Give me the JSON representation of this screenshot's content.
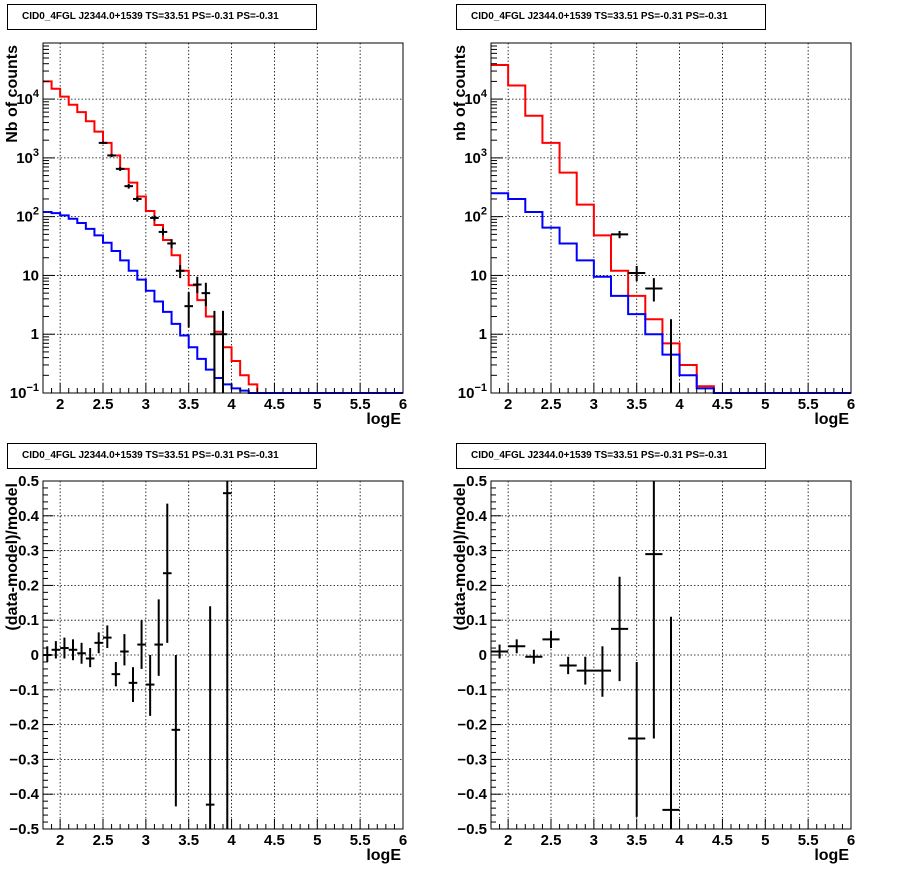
{
  "colors": {
    "data": "#000000",
    "total_model": "#ff0000",
    "source_model": "#0000ff",
    "grid": "#000000"
  },
  "panels": [
    {
      "title": "CID0_4FGL J2344.0+1539 TS=33.51 PS=-0.31 PS=-0.31",
      "chart_data": {
        "type": "histogram",
        "xlabel": "logE",
        "ylabel": "Nb of counts",
        "xlim": [
          1.8,
          6.0
        ],
        "ylim": [
          0.1,
          90000
        ],
        "yscale": "log",
        "xticks": [
          2,
          2.5,
          3,
          3.5,
          4,
          4.5,
          5,
          5.5,
          6
        ],
        "yticks": [
          {
            "v": 0.1,
            "label": "10",
            "sup": "−1"
          },
          {
            "v": 1,
            "label": "1"
          },
          {
            "v": 10,
            "label": "10"
          },
          {
            "v": 100,
            "label": "10",
            "sup": "2"
          },
          {
            "v": 1000,
            "label": "10",
            "sup": "3"
          },
          {
            "v": 10000,
            "label": "10",
            "sup": "4"
          }
        ],
        "grid": true,
        "bin_edges": [
          1.8,
          1.9,
          2.0,
          2.1,
          2.2,
          2.3,
          2.4,
          2.5,
          2.6,
          2.7,
          2.8,
          2.9,
          3.0,
          3.1,
          3.2,
          3.3,
          3.4,
          3.5,
          3.6,
          3.7,
          3.8,
          3.9,
          4.0,
          4.1,
          4.2,
          4.3,
          4.4,
          4.5,
          6.0
        ],
        "series": [
          {
            "color_key": "total_model",
            "values": [
              20000,
              15000,
              11000,
              8000,
              6000,
              4200,
              2800,
              1800,
              1100,
              650,
              380,
              220,
              125,
              72,
              40,
              22,
              12,
              6.8,
              3.8,
              2.0,
              1.1,
              0.6,
              0.35,
              0.2,
              0.14,
              0.1,
              0.1,
              0.1
            ]
          },
          {
            "color_key": "source_model",
            "values": [
              120,
              115,
              105,
              92,
              78,
              62,
              48,
              36,
              26,
              18,
              12,
              8.5,
              5.5,
              3.6,
              2.4,
              1.5,
              0.95,
              0.6,
              0.38,
              0.25,
              0.18,
              0.14,
              0.12,
              0.11,
              0.1,
              0.1,
              0.1,
              0.1
            ]
          }
        ],
        "points": [
          {
            "x": 2.5,
            "y": 1800,
            "dx": 0.05,
            "lo": 1720,
            "hi": 1890
          },
          {
            "x": 2.6,
            "y": 1100,
            "dx": 0.05,
            "lo": 1030,
            "hi": 1170
          },
          {
            "x": 2.7,
            "y": 650,
            "dx": 0.05,
            "lo": 600,
            "hi": 700
          },
          {
            "x": 2.8,
            "y": 330,
            "dx": 0.05,
            "lo": 300,
            "hi": 360
          },
          {
            "x": 2.9,
            "y": 200,
            "dx": 0.05,
            "lo": 180,
            "hi": 220
          },
          {
            "x": 3.1,
            "y": 95,
            "dx": 0.05,
            "lo": 85,
            "hi": 105
          },
          {
            "x": 3.2,
            "y": 55,
            "dx": 0.05,
            "lo": 48,
            "hi": 63
          },
          {
            "x": 3.3,
            "y": 35,
            "dx": 0.05,
            "lo": 29,
            "hi": 41
          },
          {
            "x": 3.4,
            "y": 12,
            "dx": 0.05,
            "lo": 9,
            "hi": 15
          },
          {
            "x": 3.5,
            "y": 3.0,
            "dx": 0.05,
            "lo": 1.3,
            "hi": 5.2
          },
          {
            "x": 3.6,
            "y": 7,
            "dx": 0.05,
            "lo": 5,
            "hi": 9.5
          },
          {
            "x": 3.7,
            "y": 5,
            "dx": 0.05,
            "lo": 3,
            "hi": 7.5
          },
          {
            "x": 3.8,
            "y": 1.0,
            "dx": 0.05,
            "lo": 0.1,
            "hi": 2.5
          },
          {
            "x": 3.9,
            "y": 1.0,
            "dx": 0.05,
            "lo": 0.1,
            "hi": 2.5
          }
        ]
      }
    },
    {
      "title": "CID0_4FGL J2344.0+1539 TS=33.51 PS=-0.31 PS=-0.31",
      "chart_data": {
        "type": "histogram",
        "xlabel": "logE",
        "ylabel": "nb of counts",
        "xlim": [
          1.8,
          6.0
        ],
        "ylim": [
          0.1,
          90000
        ],
        "yscale": "log",
        "xticks": [
          2,
          2.5,
          3,
          3.5,
          4,
          4.5,
          5,
          5.5,
          6
        ],
        "yticks": [
          {
            "v": 0.1,
            "label": "10",
            "sup": "−1"
          },
          {
            "v": 1,
            "label": "1"
          },
          {
            "v": 10,
            "label": "10"
          },
          {
            "v": 100,
            "label": "10",
            "sup": "2"
          },
          {
            "v": 1000,
            "label": "10",
            "sup": "3"
          },
          {
            "v": 10000,
            "label": "10",
            "sup": "4"
          }
        ],
        "grid": true,
        "bin_edges": [
          1.8,
          2.0,
          2.2,
          2.4,
          2.6,
          2.8,
          3.0,
          3.2,
          3.4,
          3.6,
          3.8,
          4.0,
          4.2,
          4.4,
          4.6,
          6.0
        ],
        "series": [
          {
            "color_key": "total_model",
            "values": [
              38000,
              17000,
              5200,
              1800,
              560,
              160,
              48,
              12,
              4.5,
              1.8,
              0.7,
              0.3,
              0.13,
              0.1,
              0.1
            ]
          },
          {
            "color_key": "source_model",
            "values": [
              250,
              200,
              120,
              65,
              35,
              18,
              9.5,
              4.5,
              2.2,
              1.0,
              0.45,
              0.2,
              0.12,
              0.1,
              0.1
            ]
          }
        ],
        "points": [
          {
            "x": 3.3,
            "y": 50,
            "dx": 0.1,
            "lo": 43,
            "hi": 57
          },
          {
            "x": 3.5,
            "y": 11,
            "dx": 0.1,
            "lo": 8,
            "hi": 14.5
          },
          {
            "x": 3.7,
            "y": 6,
            "dx": 0.1,
            "lo": 3.6,
            "hi": 9
          },
          {
            "x": 3.9,
            "y": 0.1,
            "dx": 0.0,
            "lo": 0.1,
            "hi": 1.8
          }
        ]
      }
    },
    {
      "title": "CID0_4FGL J2344.0+1539 TS=33.51 PS=-0.31 PS=-0.31",
      "chart_data": {
        "type": "scatter",
        "xlabel": "logE",
        "ylabel": "(data-model)/model",
        "xlim": [
          1.8,
          6.0
        ],
        "ylim": [
          -0.5,
          0.5
        ],
        "yscale": "linear",
        "xticks": [
          2,
          2.5,
          3,
          3.5,
          4,
          4.5,
          5,
          5.5,
          6
        ],
        "yticks": [
          {
            "v": -0.5,
            "label": "−0.5"
          },
          {
            "v": -0.4,
            "label": "−0.4"
          },
          {
            "v": -0.3,
            "label": "−0.3"
          },
          {
            "v": -0.2,
            "label": "−0.2"
          },
          {
            "v": -0.1,
            "label": "−0.1"
          },
          {
            "v": 0,
            "label": "0"
          },
          {
            "v": 0.1,
            "label": "0.1"
          },
          {
            "v": 0.2,
            "label": "0.2"
          },
          {
            "v": 0.3,
            "label": "0.3"
          },
          {
            "v": 0.4,
            "label": "0.4"
          },
          {
            "v": 0.5,
            "label": "0.5"
          }
        ],
        "grid": true,
        "points": [
          {
            "x": 1.85,
            "y": 0.0,
            "dx": 0.05,
            "lo": -0.02,
            "hi": 0.025
          },
          {
            "x": 1.95,
            "y": 0.015,
            "dx": 0.05,
            "lo": -0.01,
            "hi": 0.04
          },
          {
            "x": 2.05,
            "y": 0.02,
            "dx": 0.05,
            "lo": -0.01,
            "hi": 0.05
          },
          {
            "x": 2.15,
            "y": 0.015,
            "dx": 0.05,
            "lo": -0.015,
            "hi": 0.045
          },
          {
            "x": 2.25,
            "y": 0.005,
            "dx": 0.05,
            "lo": -0.025,
            "hi": 0.035
          },
          {
            "x": 2.35,
            "y": -0.01,
            "dx": 0.05,
            "lo": -0.035,
            "hi": 0.02
          },
          {
            "x": 2.45,
            "y": 0.035,
            "dx": 0.05,
            "lo": 0.005,
            "hi": 0.065
          },
          {
            "x": 2.55,
            "y": 0.05,
            "dx": 0.05,
            "lo": 0.02,
            "hi": 0.085
          },
          {
            "x": 2.65,
            "y": -0.055,
            "dx": 0.05,
            "lo": -0.09,
            "hi": -0.02
          },
          {
            "x": 2.75,
            "y": 0.01,
            "dx": 0.05,
            "lo": -0.03,
            "hi": 0.06
          },
          {
            "x": 2.85,
            "y": -0.08,
            "dx": 0.05,
            "lo": -0.135,
            "hi": -0.035
          },
          {
            "x": 2.95,
            "y": 0.03,
            "dx": 0.05,
            "lo": -0.04,
            "hi": 0.1
          },
          {
            "x": 3.05,
            "y": -0.085,
            "dx": 0.05,
            "lo": -0.175,
            "hi": 0.0
          },
          {
            "x": 3.15,
            "y": 0.03,
            "dx": 0.05,
            "lo": -0.06,
            "hi": 0.16
          },
          {
            "x": 3.25,
            "y": 0.235,
            "dx": 0.05,
            "lo": 0.035,
            "hi": 0.435
          },
          {
            "x": 3.35,
            "y": -0.215,
            "dx": 0.05,
            "lo": -0.435,
            "hi": 0.0
          },
          {
            "x": 3.75,
            "y": -0.43,
            "dx": 0.05,
            "lo": -0.5,
            "hi": 0.14
          },
          {
            "x": 3.95,
            "y": 0.465,
            "dx": 0.05,
            "lo": -0.5,
            "hi": 0.5
          }
        ]
      }
    },
    {
      "title": "CID0_4FGL J2344.0+1539 TS=33.51 PS=-0.31 PS=-0.31",
      "chart_data": {
        "type": "scatter",
        "xlabel": "logE",
        "ylabel": "(data-model)/model",
        "xlim": [
          1.8,
          6.0
        ],
        "ylim": [
          -0.5,
          0.5
        ],
        "yscale": "linear",
        "xticks": [
          2,
          2.5,
          3,
          3.5,
          4,
          4.5,
          5,
          5.5,
          6
        ],
        "yticks": [
          {
            "v": -0.5,
            "label": "−0.5"
          },
          {
            "v": -0.4,
            "label": "−0.4"
          },
          {
            "v": -0.3,
            "label": "−0.3"
          },
          {
            "v": -0.2,
            "label": "−0.2"
          },
          {
            "v": -0.1,
            "label": "−0.1"
          },
          {
            "v": 0,
            "label": "0"
          },
          {
            "v": 0.1,
            "label": "0.1"
          },
          {
            "v": 0.2,
            "label": "0.2"
          },
          {
            "v": 0.3,
            "label": "0.3"
          },
          {
            "v": 0.4,
            "label": "0.4"
          },
          {
            "v": 0.5,
            "label": "0.5"
          }
        ],
        "grid": true,
        "points": [
          {
            "x": 1.9,
            "y": 0.01,
            "dx": 0.1,
            "lo": -0.01,
            "hi": 0.03
          },
          {
            "x": 2.1,
            "y": 0.025,
            "dx": 0.1,
            "lo": 0.005,
            "hi": 0.045
          },
          {
            "x": 2.3,
            "y": -0.005,
            "dx": 0.1,
            "lo": -0.025,
            "hi": 0.015
          },
          {
            "x": 2.5,
            "y": 0.045,
            "dx": 0.1,
            "lo": 0.02,
            "hi": 0.07
          },
          {
            "x": 2.7,
            "y": -0.03,
            "dx": 0.1,
            "lo": -0.055,
            "hi": -0.005
          },
          {
            "x": 2.9,
            "y": -0.045,
            "dx": 0.1,
            "lo": -0.085,
            "hi": -0.005
          },
          {
            "x": 3.1,
            "y": -0.045,
            "dx": 0.1,
            "lo": -0.12,
            "hi": 0.025
          },
          {
            "x": 3.3,
            "y": 0.075,
            "dx": 0.1,
            "lo": -0.075,
            "hi": 0.225
          },
          {
            "x": 3.5,
            "y": -0.24,
            "dx": 0.1,
            "lo": -0.465,
            "hi": -0.02
          },
          {
            "x": 3.7,
            "y": 0.29,
            "dx": 0.1,
            "lo": -0.24,
            "hi": 0.5
          },
          {
            "x": 3.9,
            "y": -0.445,
            "dx": 0.1,
            "lo": -0.5,
            "hi": 0.11
          }
        ]
      }
    }
  ]
}
